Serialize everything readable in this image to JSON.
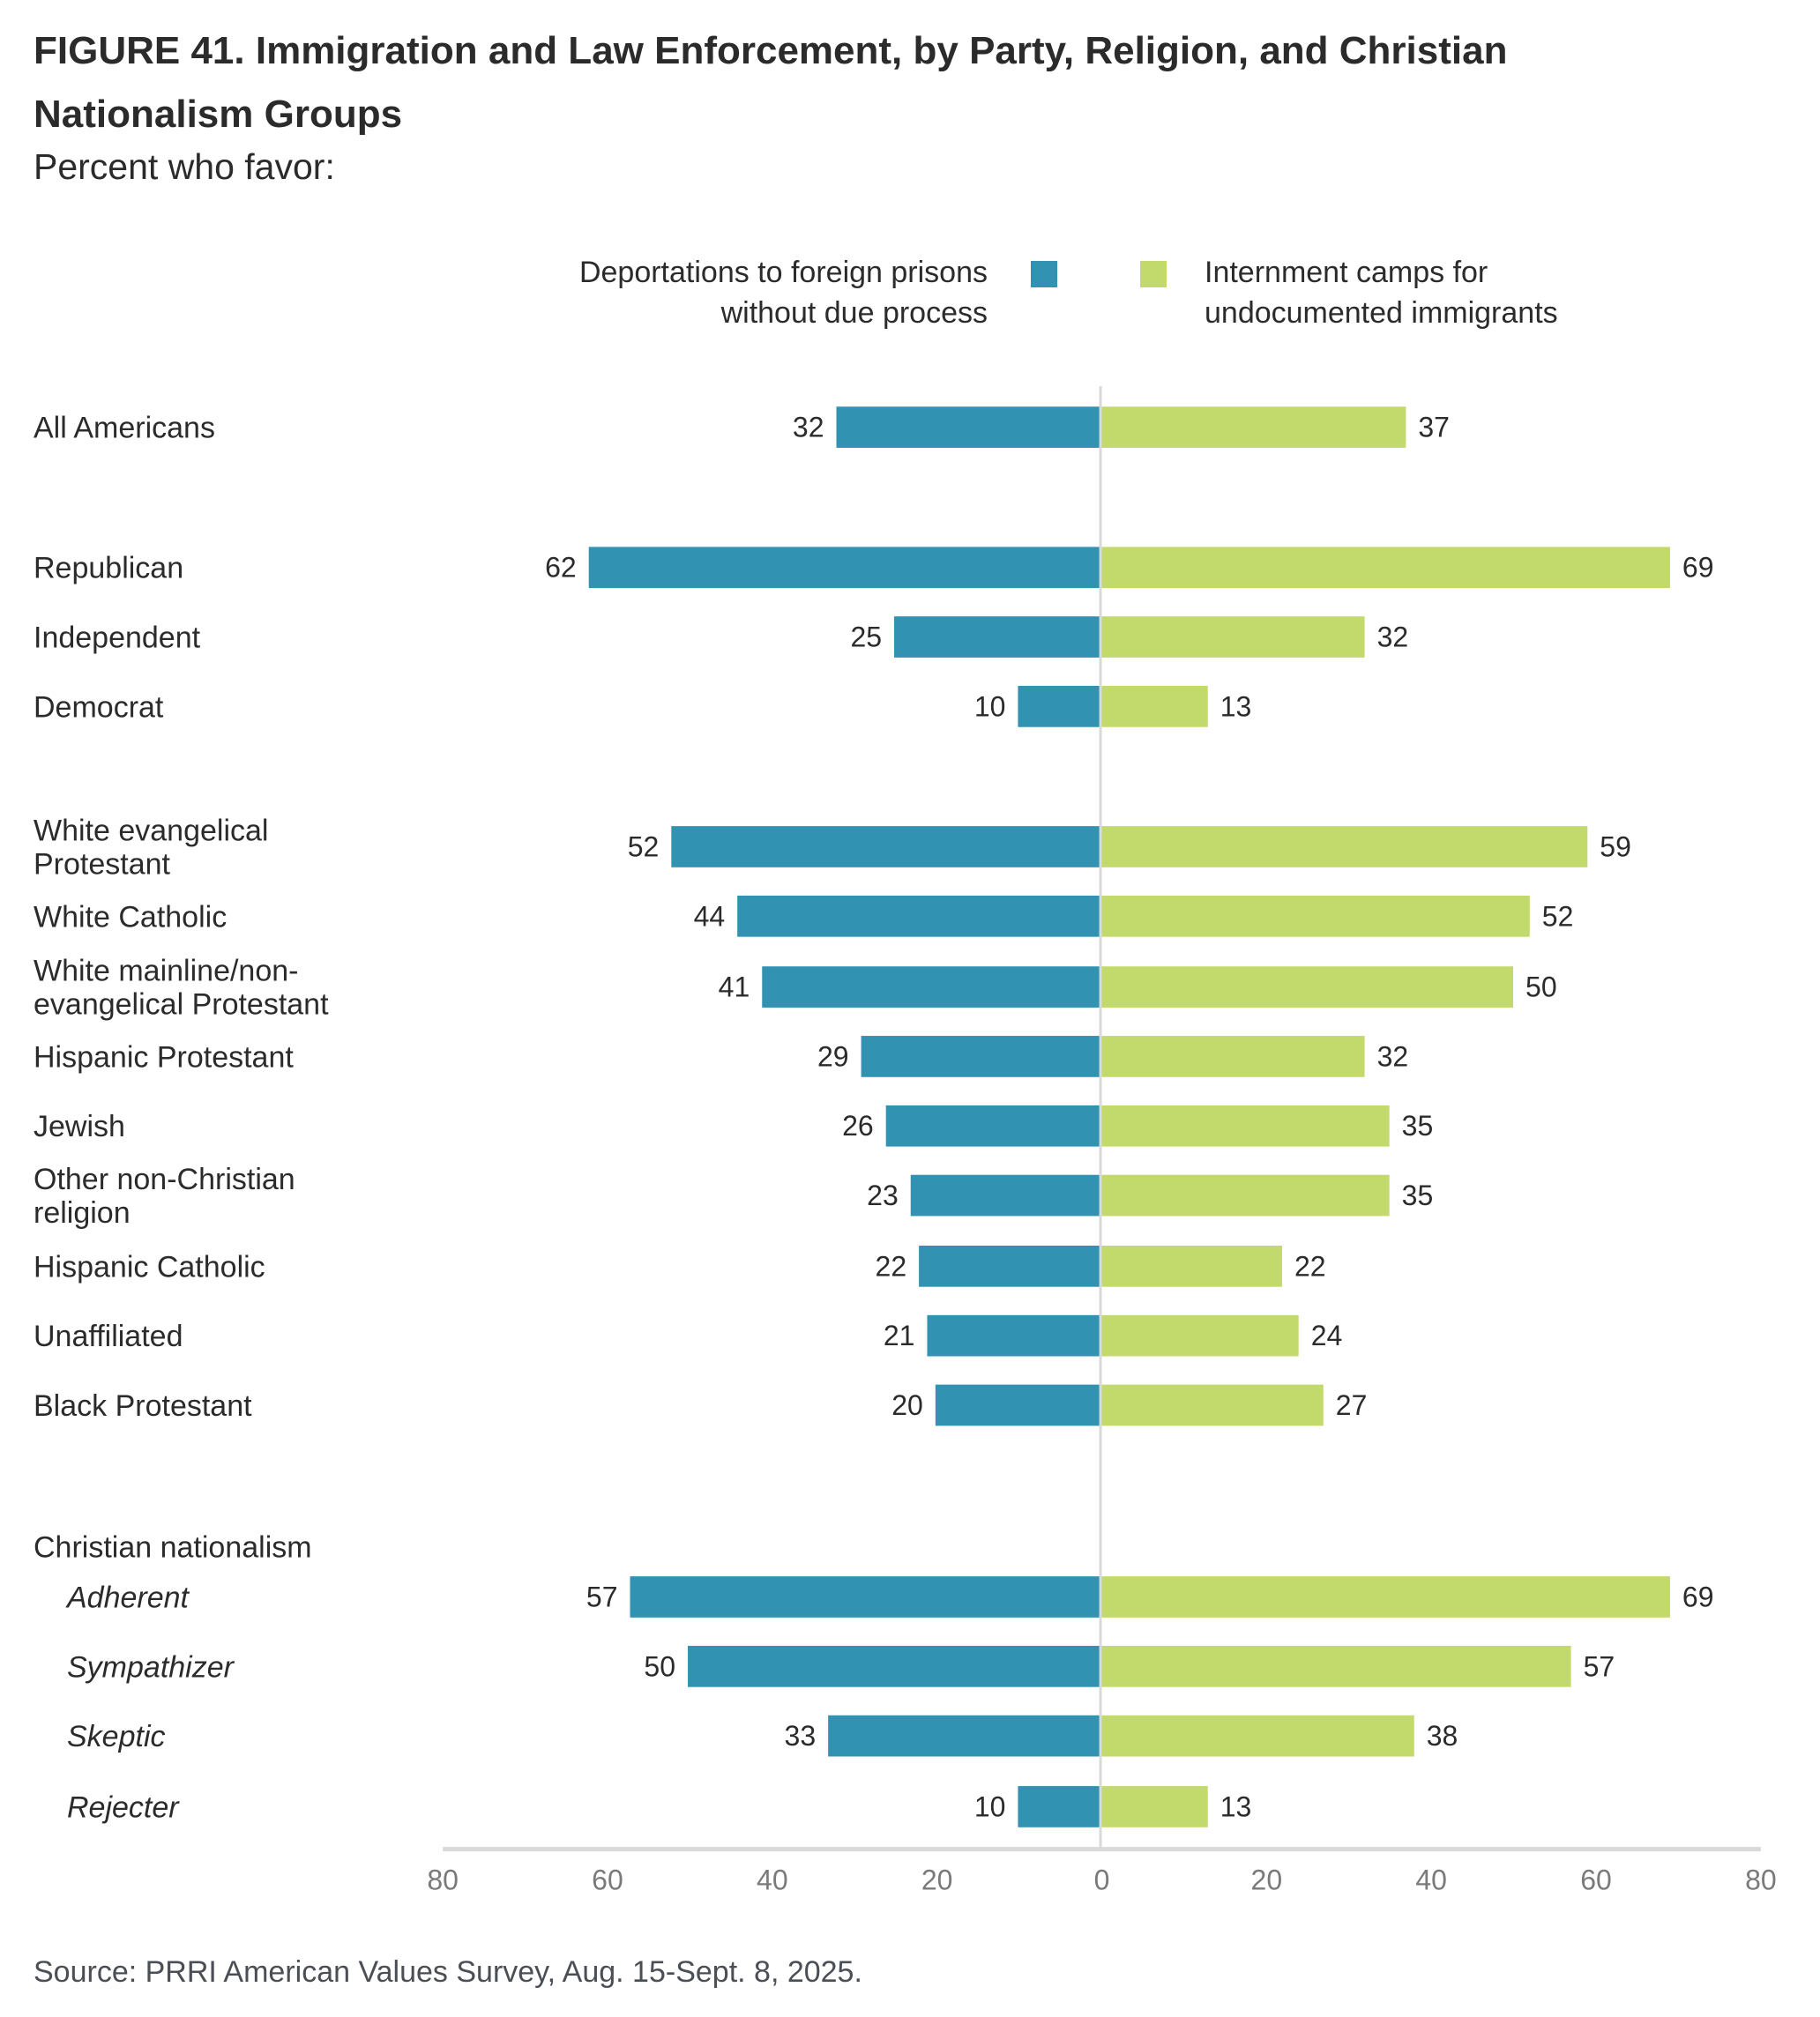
{
  "header": {
    "title": "FIGURE 41.  Immigration and Law Enforcement, by Party, Religion, and Christian Nationalism Groups",
    "subtitle": "Percent who favor:"
  },
  "legend": {
    "left_line1": "Deportations to foreign prisons",
    "left_line2": "without due process",
    "right_line1": "Internment camps for",
    "right_line2": "undocumented immigrants"
  },
  "colors": {
    "deportations": "#3192b1",
    "internment": "#c2da6b",
    "axis": "#d9d9d9"
  },
  "footer": {
    "source": "Source: PRRI American Values Survey, Aug. 15-Sept. 8, 2025."
  },
  "chart_data": {
    "type": "bar",
    "orientation": "horizontal-diverging",
    "title": "FIGURE 41.  Immigration and Law Enforcement, by Party, Religion, and Christian Nationalism Groups",
    "subtitle": "Percent who favor:",
    "xlabel": "",
    "ylabel": "",
    "xlim": [
      -80,
      80
    ],
    "x_ticks": [
      80,
      60,
      40,
      20,
      0,
      20,
      40,
      60,
      80
    ],
    "grid": false,
    "legend_position": "top-center",
    "group_header": "Christian nationalism",
    "categories": [
      {
        "label": [
          "All Americans"
        ],
        "italic": false,
        "group": "overall"
      },
      {
        "label": [
          "Republican"
        ],
        "italic": false,
        "group": "party"
      },
      {
        "label": [
          "Independent"
        ],
        "italic": false,
        "group": "party"
      },
      {
        "label": [
          "Democrat"
        ],
        "italic": false,
        "group": "party"
      },
      {
        "label": [
          "White evangelical",
          "Protestant"
        ],
        "italic": false,
        "group": "religion"
      },
      {
        "label": [
          "White Catholic"
        ],
        "italic": false,
        "group": "religion"
      },
      {
        "label": [
          "White mainline/non-",
          "evangelical Protestant"
        ],
        "italic": false,
        "group": "religion"
      },
      {
        "label": [
          "Hispanic Protestant"
        ],
        "italic": false,
        "group": "religion"
      },
      {
        "label": [
          "Jewish"
        ],
        "italic": false,
        "group": "religion"
      },
      {
        "label": [
          "Other non-Christian",
          "religion"
        ],
        "italic": false,
        "group": "religion"
      },
      {
        "label": [
          "Hispanic Catholic"
        ],
        "italic": false,
        "group": "religion"
      },
      {
        "label": [
          "Unaffiliated"
        ],
        "italic": false,
        "group": "religion"
      },
      {
        "label": [
          "Black Protestant"
        ],
        "italic": false,
        "group": "religion"
      },
      {
        "label": [
          "Adherent"
        ],
        "italic": true,
        "group": "christian_nationalism"
      },
      {
        "label": [
          "Sympathizer"
        ],
        "italic": true,
        "group": "christian_nationalism"
      },
      {
        "label": [
          "Skeptic"
        ],
        "italic": true,
        "group": "christian_nationalism"
      },
      {
        "label": [
          "Rejecter"
        ],
        "italic": true,
        "group": "christian_nationalism"
      }
    ],
    "series": [
      {
        "name": "Deportations to foreign prisons without due process",
        "side": "left",
        "color": "#3192b1",
        "values": [
          32,
          62,
          25,
          10,
          52,
          44,
          41,
          29,
          26,
          23,
          22,
          21,
          20,
          57,
          50,
          33,
          10
        ]
      },
      {
        "name": "Internment camps for undocumented immigrants",
        "side": "right",
        "color": "#c2da6b",
        "values": [
          37,
          69,
          32,
          13,
          59,
          52,
          50,
          32,
          35,
          35,
          22,
          24,
          27,
          69,
          57,
          38,
          13
        ]
      }
    ]
  }
}
